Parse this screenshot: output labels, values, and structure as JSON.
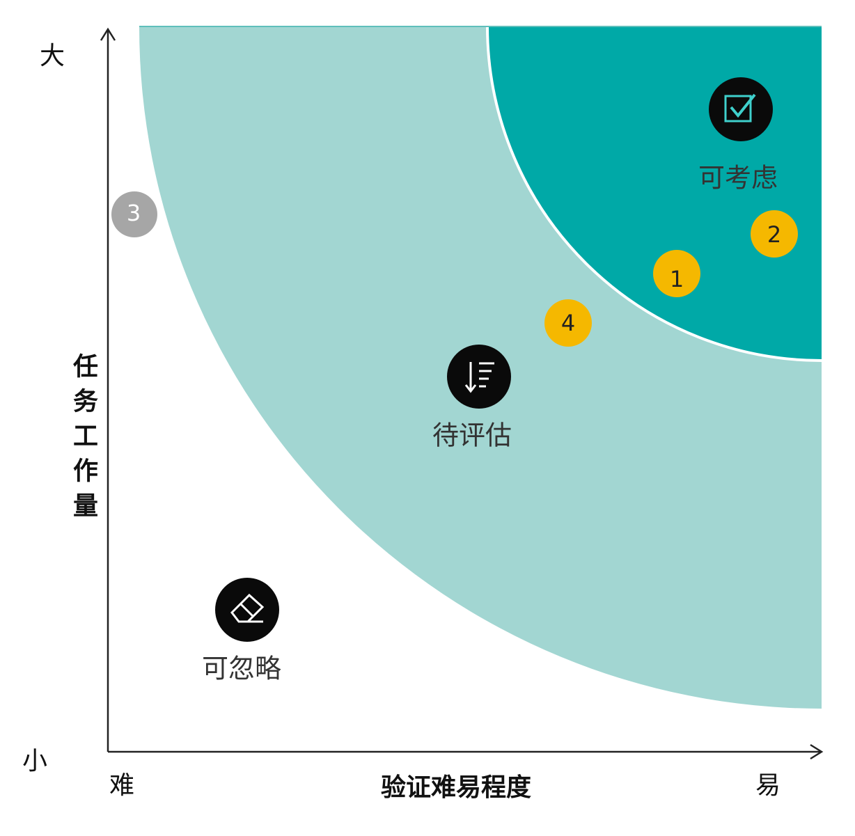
{
  "axes": {
    "y_high": "大",
    "y_low": "小",
    "y_title": "任务工作量",
    "x_low": "难",
    "x_high": "易",
    "x_title": "验证难易程度"
  },
  "zones": [
    {
      "label": "可考虑"
    },
    {
      "label": "待评估"
    },
    {
      "label": "可忽略"
    }
  ],
  "markers": [
    {
      "label": "1"
    },
    {
      "label": "2"
    },
    {
      "label": "3"
    },
    {
      "label": "4"
    }
  ]
}
